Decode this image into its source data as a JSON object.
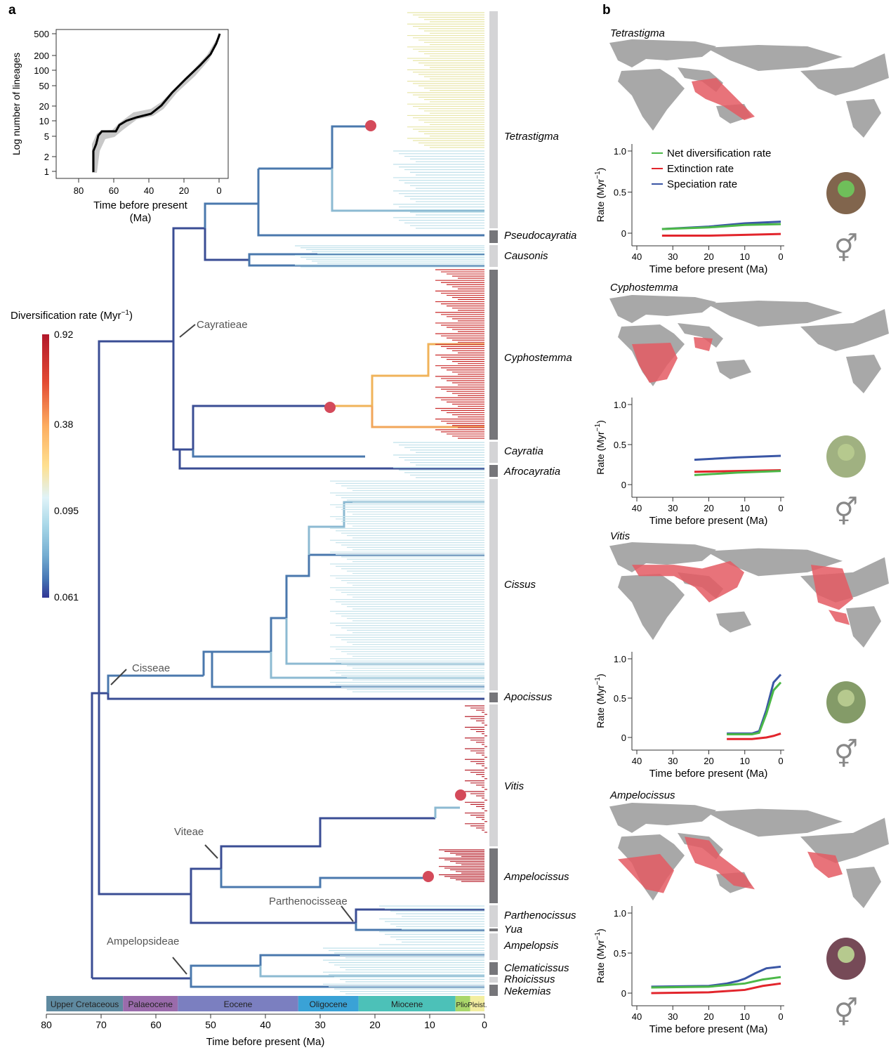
{
  "panel_labels": {
    "a": "a",
    "b": "b"
  },
  "ltt_inset": {
    "ylabel": "Log number of lineages",
    "xlabel_line1": "Time before present",
    "xlabel_line2": "(Ma)",
    "y_ticks": [
      "500",
      "200",
      "100",
      "50",
      "20",
      "10",
      "5",
      "2",
      "1"
    ],
    "x_ticks": [
      "80",
      "60",
      "40",
      "20",
      "0"
    ]
  },
  "colorbar": {
    "title": "Diversification rate (Myr",
    "title_sup": "−1",
    "title_end": ")",
    "ticks": [
      "0.92",
      "0.38",
      "0.095",
      "0.061"
    ],
    "colors": [
      "#b2182b",
      "#e34a33",
      "#fdae61",
      "#fee090",
      "#e0f3f8",
      "#abd9e9",
      "#74add1",
      "#4575b4",
      "#313695"
    ]
  },
  "tribes": {
    "cayratieae": "Cayratieae",
    "cisseae": "Cisseae",
    "viteae": "Viteae",
    "parthenocisseae": "Parthenocisseae",
    "ampelopsideae": "Ampelopsideae"
  },
  "genera": [
    {
      "name": "Tetrastigma",
      "shade": "light"
    },
    {
      "name": "Pseudocayratia",
      "shade": "dark"
    },
    {
      "name": "Causonis",
      "shade": "light"
    },
    {
      "name": "Cyphostemma",
      "shade": "dark"
    },
    {
      "name": "Cayratia",
      "shade": "light"
    },
    {
      "name": "Afrocayratia",
      "shade": "dark"
    },
    {
      "name": "Cissus",
      "shade": "light"
    },
    {
      "name": "Apocissus",
      "shade": "dark"
    },
    {
      "name": "Vitis",
      "shade": "light"
    },
    {
      "name": "Ampelocissus",
      "shade": "dark"
    },
    {
      "name": "Parthenocissus",
      "shade": "light"
    },
    {
      "name": "Yua",
      "shade": "dark"
    },
    {
      "name": "Ampelopsis",
      "shade": "light"
    },
    {
      "name": "Clematicissus",
      "shade": "dark"
    },
    {
      "name": "Rhoicissus",
      "shade": "light"
    },
    {
      "name": "Nekemias",
      "shade": "dark"
    }
  ],
  "timescale": {
    "epochs": [
      {
        "name": "Upper Cretaceous",
        "from": 80,
        "to": 66,
        "color": "#5f8aa0"
      },
      {
        "name": "Palaeocene",
        "from": 66,
        "to": 56,
        "color": "#9a6bab"
      },
      {
        "name": "Eocene",
        "from": 56,
        "to": 34,
        "color": "#7b7fc0"
      },
      {
        "name": "Oligocene",
        "from": 34,
        "to": 23,
        "color": "#3aa2d6"
      },
      {
        "name": "Miocene",
        "from": 23,
        "to": 5.3,
        "color": "#4cc1b8"
      },
      {
        "name": "Plio.",
        "from": 5.3,
        "to": 2.6,
        "color": "#a9d66a"
      },
      {
        "name": "Pleist.",
        "from": 2.6,
        "to": 0,
        "color": "#f3eea0"
      }
    ],
    "ticks": [
      "80",
      "70",
      "60",
      "50",
      "40",
      "30",
      "20",
      "10",
      "0"
    ],
    "xlabel": "Time before present (Ma)"
  },
  "panels_b": [
    {
      "genus": "Tetrastigma",
      "legend": [
        "Net diversification rate",
        "Extinction rate",
        "Speciation rate"
      ],
      "ylabel": "Rate (Myr",
      "ylabel_sup": "−1",
      "ylabel_end": ")",
      "y_ticks": [
        "1.0",
        "0.5",
        "0"
      ],
      "x_ticks": [
        "40",
        "30",
        "20",
        "10",
        "0"
      ],
      "xlabel": "Time before present (Ma)",
      "sex_symbol": "⚥",
      "net": [
        [
          33,
          0.05
        ],
        [
          20,
          0.07
        ],
        [
          10,
          0.1
        ],
        [
          0,
          0.11
        ]
      ],
      "ext": [
        [
          33,
          -0.03
        ],
        [
          20,
          -0.03
        ],
        [
          10,
          -0.02
        ],
        [
          0,
          -0.01
        ]
      ],
      "spec": [
        [
          33,
          0.05
        ],
        [
          20,
          0.08
        ],
        [
          10,
          0.12
        ],
        [
          0,
          0.14
        ]
      ]
    },
    {
      "genus": "Cyphostemma",
      "ylabel": "Rate (Myr",
      "ylabel_sup": "−1",
      "ylabel_end": ")",
      "y_ticks": [
        "1.0",
        "0.5",
        "0"
      ],
      "x_ticks": [
        "40",
        "30",
        "20",
        "10",
        "0"
      ],
      "xlabel": "Time before present (Ma)",
      "sex_symbol": "⚥",
      "net": [
        [
          24,
          0.12
        ],
        [
          12,
          0.15
        ],
        [
          0,
          0.17
        ]
      ],
      "ext": [
        [
          24,
          0.16
        ],
        [
          12,
          0.17
        ],
        [
          0,
          0.18
        ]
      ],
      "spec": [
        [
          24,
          0.31
        ],
        [
          12,
          0.34
        ],
        [
          0,
          0.36
        ]
      ]
    },
    {
      "genus": "Vitis",
      "ylabel": "Rate (Myr",
      "ylabel_sup": "−1",
      "ylabel_end": ")",
      "y_ticks": [
        "1.0",
        "0.5",
        "0"
      ],
      "x_ticks": [
        "40",
        "30",
        "20",
        "10",
        "0"
      ],
      "xlabel": "Time before present (Ma)",
      "sex_symbol": "⚥",
      "net": [
        [
          15,
          0.04
        ],
        [
          8,
          0.04
        ],
        [
          6,
          0.06
        ],
        [
          4,
          0.3
        ],
        [
          2,
          0.6
        ],
        [
          0,
          0.7
        ]
      ],
      "ext": [
        [
          15,
          -0.02
        ],
        [
          8,
          -0.02
        ],
        [
          4,
          0.0
        ],
        [
          2,
          0.02
        ],
        [
          0,
          0.05
        ]
      ],
      "spec": [
        [
          15,
          0.05
        ],
        [
          8,
          0.05
        ],
        [
          6,
          0.08
        ],
        [
          4,
          0.35
        ],
        [
          2,
          0.7
        ],
        [
          0,
          0.8
        ]
      ]
    },
    {
      "genus": "Ampelocissus",
      "ylabel": "Rate (Myr",
      "ylabel_sup": "−1",
      "ylabel_end": ")",
      "y_ticks": [
        "1.0",
        "0.5",
        "0"
      ],
      "x_ticks": [
        "40",
        "30",
        "20",
        "10",
        "0"
      ],
      "xlabel": "Time before present (Ma)",
      "sex_symbol": "⚥",
      "net": [
        [
          36,
          0.07
        ],
        [
          20,
          0.08
        ],
        [
          10,
          0.12
        ],
        [
          5,
          0.17
        ],
        [
          0,
          0.2
        ]
      ],
      "ext": [
        [
          36,
          0.0
        ],
        [
          20,
          0.01
        ],
        [
          10,
          0.04
        ],
        [
          5,
          0.09
        ],
        [
          0,
          0.12
        ]
      ],
      "spec": [
        [
          36,
          0.08
        ],
        [
          20,
          0.09
        ],
        [
          15,
          0.12
        ],
        [
          12,
          0.15
        ],
        [
          10,
          0.18
        ],
        [
          7,
          0.25
        ],
        [
          4,
          0.31
        ],
        [
          0,
          0.33
        ]
      ]
    }
  ],
  "series_colors": {
    "net": "#4cb848",
    "ext": "#e2252c",
    "spec": "#3a56a5"
  }
}
